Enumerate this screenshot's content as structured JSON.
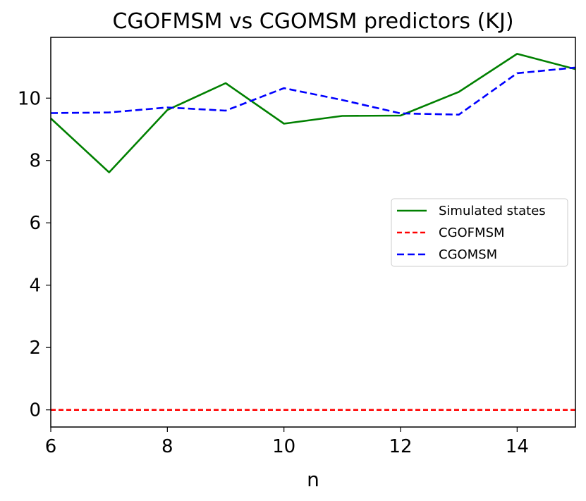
{
  "chart_data": {
    "type": "line",
    "title": "CGOFMSM vs CGOMSM predictors (KJ)",
    "xlabel": "n",
    "ylabel": "",
    "xlim": [
      6,
      15
    ],
    "ylim": [
      -0.55,
      11.95
    ],
    "xticks": [
      6,
      8,
      10,
      12,
      14
    ],
    "yticks": [
      0,
      2,
      4,
      6,
      8,
      10
    ],
    "grid": false,
    "legend_position": "center-right",
    "x": [
      6,
      7,
      8,
      9,
      10,
      11,
      12,
      13,
      14,
      15
    ],
    "series": [
      {
        "name": "Simulated states",
        "color": "#008000",
        "style": "solid",
        "values": [
          9.35,
          7.62,
          9.62,
          10.48,
          9.18,
          9.43,
          9.44,
          10.2,
          11.42,
          10.93
        ]
      },
      {
        "name": "CGOFMSM",
        "color": "#ff0000",
        "style": "dashed",
        "values": [
          0,
          0,
          0,
          0,
          0,
          0,
          0,
          0,
          0,
          0
        ]
      },
      {
        "name": "CGOMSM",
        "color": "#0000ff",
        "style": "dashed",
        "values": [
          9.52,
          9.54,
          9.7,
          9.6,
          10.32,
          9.94,
          9.51,
          9.47,
          10.8,
          10.98
        ]
      }
    ]
  }
}
